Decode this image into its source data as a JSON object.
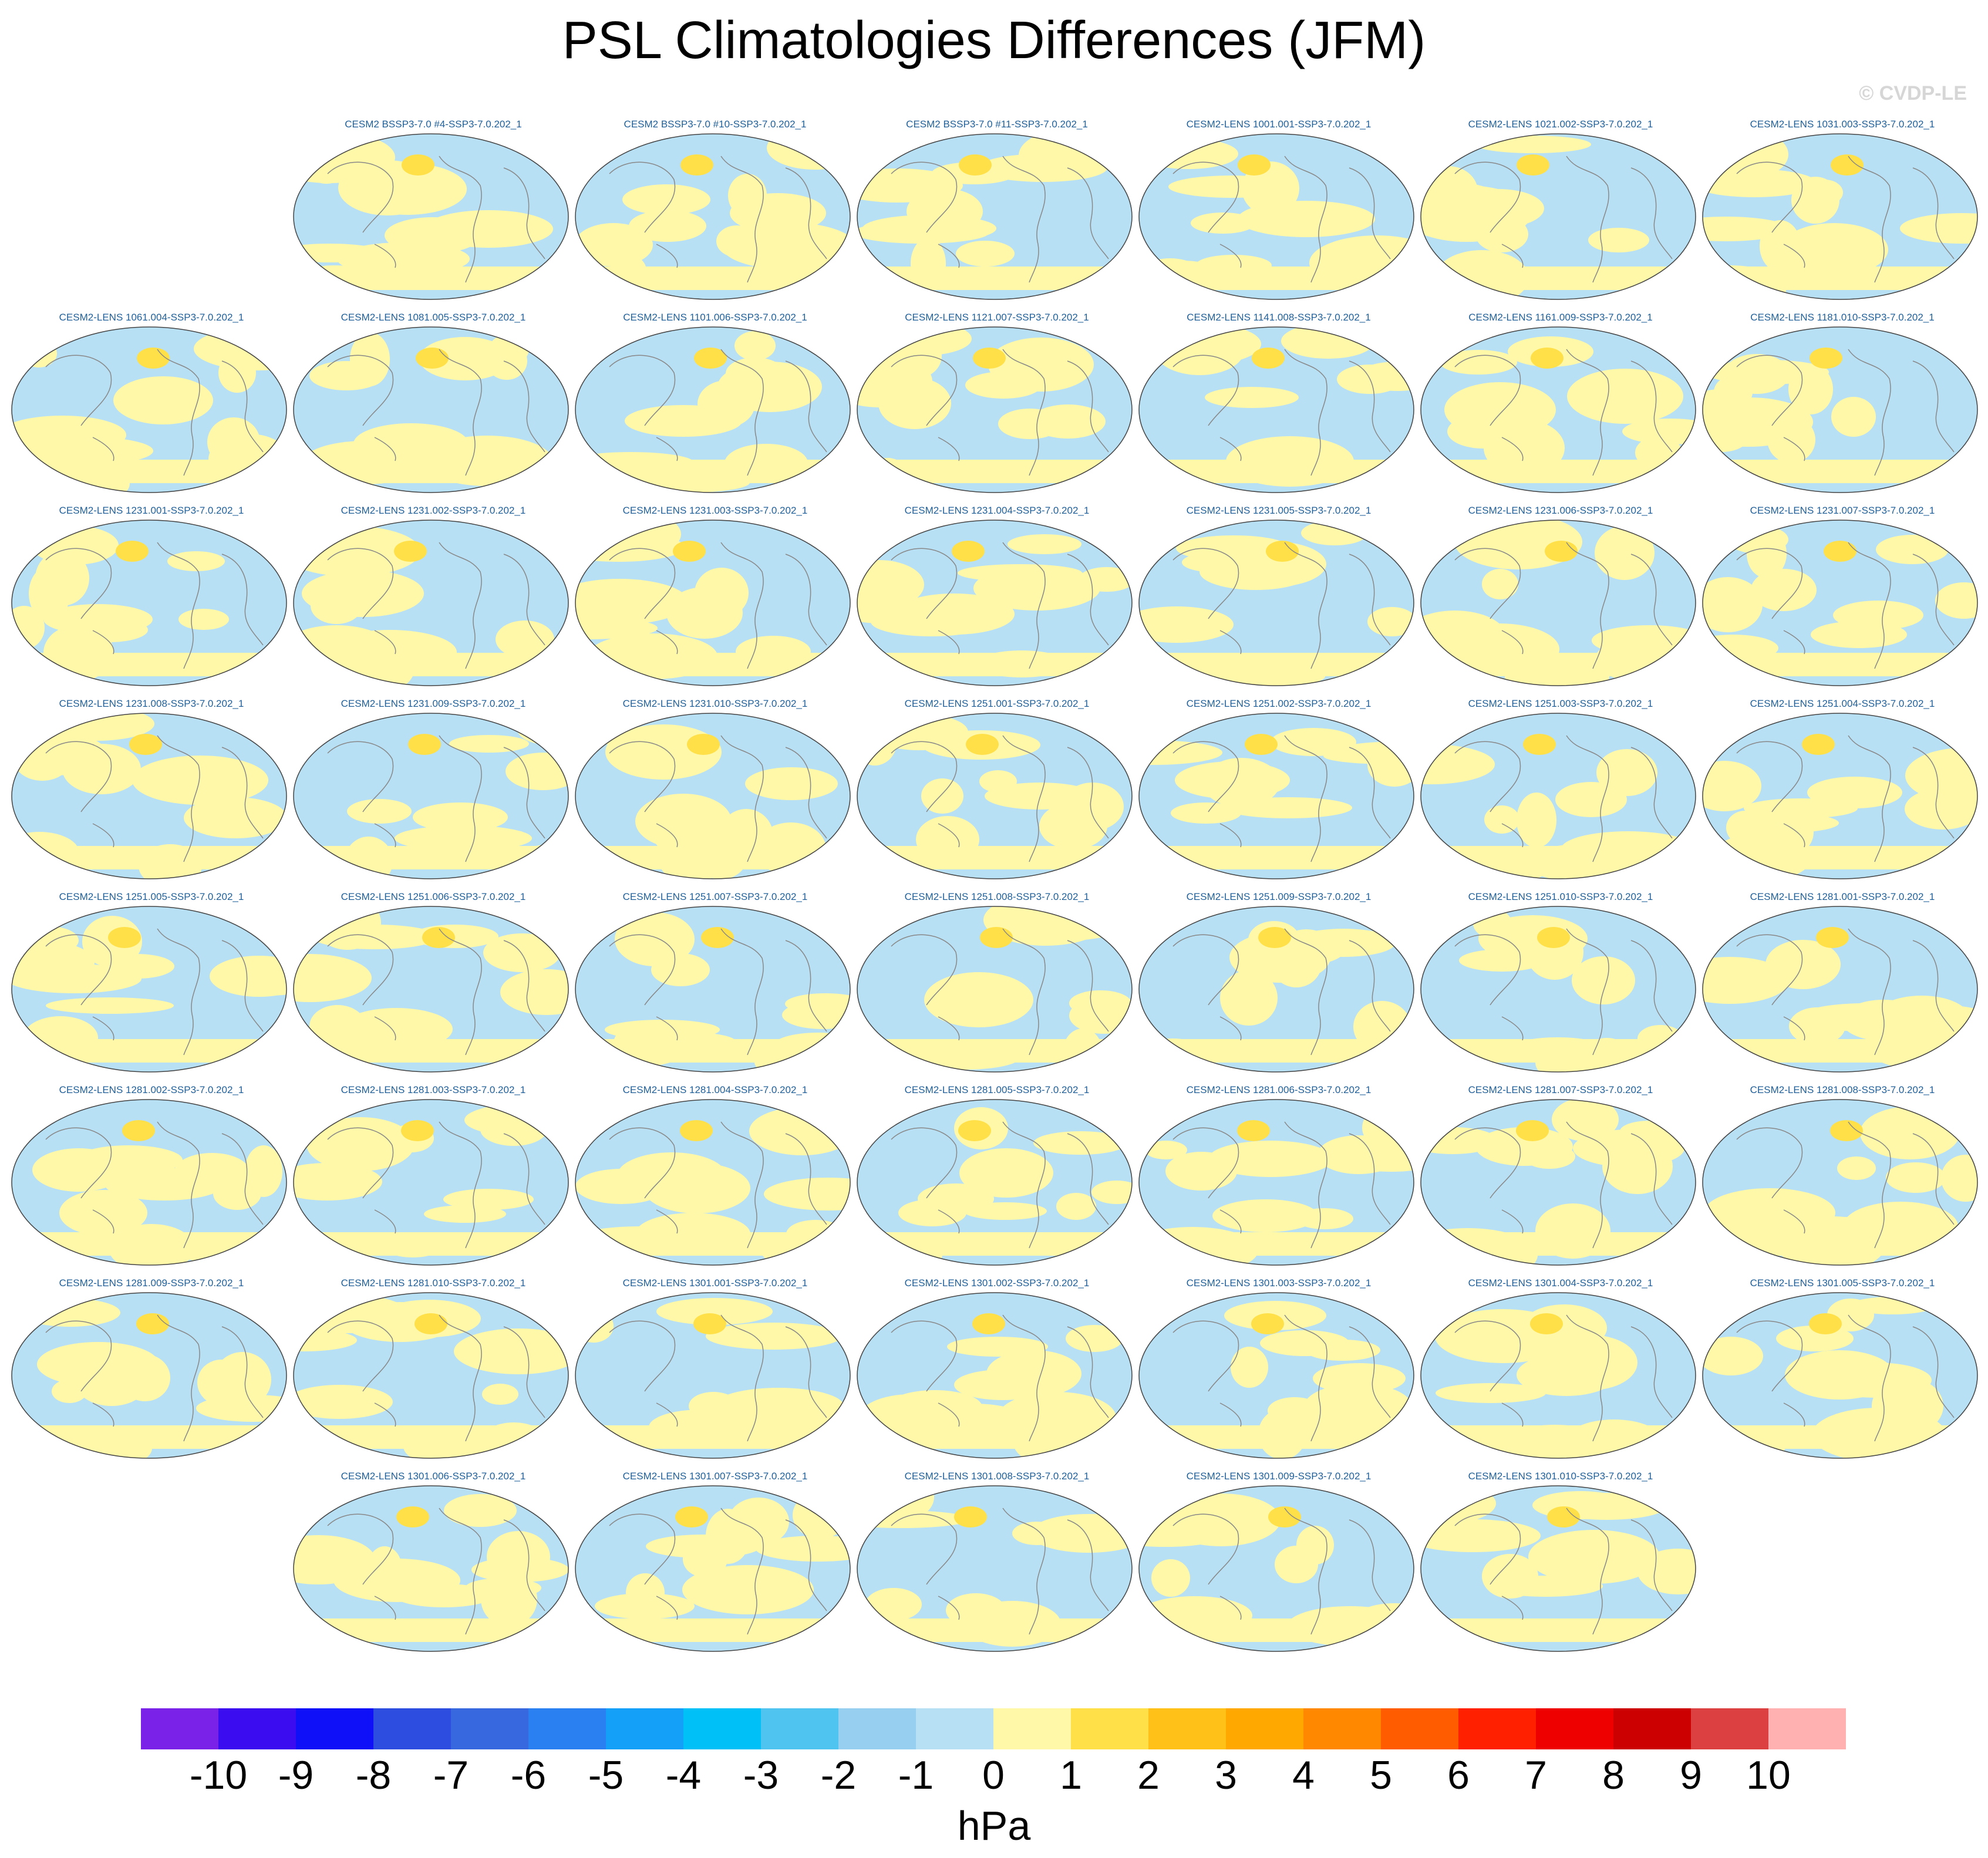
{
  "title": "PSL Climatologies Differences (JFM)",
  "watermark": "© CVDP-LE",
  "panels": [
    {
      "label": "CESM2 BSSP3-7.0 #4-SSP3-7.0.202_1"
    },
    {
      "label": "CESM2 BSSP3-7.0 #10-SSP3-7.0.202_1"
    },
    {
      "label": "CESM2 BSSP3-7.0 #11-SSP3-7.0.202_1"
    },
    {
      "label": "CESM2-LENS 1001.001-SSP3-7.0.202_1"
    },
    {
      "label": "CESM2-LENS 1021.002-SSP3-7.0.202_1"
    },
    {
      "label": "CESM2-LENS 1031.003-SSP3-7.0.202_1"
    },
    {
      "label": "CESM2-LENS 1061.004-SSP3-7.0.202_1"
    },
    {
      "label": "CESM2-LENS 1081.005-SSP3-7.0.202_1"
    },
    {
      "label": "CESM2-LENS 1101.006-SSP3-7.0.202_1"
    },
    {
      "label": "CESM2-LENS 1121.007-SSP3-7.0.202_1"
    },
    {
      "label": "CESM2-LENS 1141.008-SSP3-7.0.202_1"
    },
    {
      "label": "CESM2-LENS 1161.009-SSP3-7.0.202_1"
    },
    {
      "label": "CESM2-LENS 1181.010-SSP3-7.0.202_1"
    },
    {
      "label": "CESM2-LENS 1231.001-SSP3-7.0.202_1"
    },
    {
      "label": "CESM2-LENS 1231.002-SSP3-7.0.202_1"
    },
    {
      "label": "CESM2-LENS 1231.003-SSP3-7.0.202_1"
    },
    {
      "label": "CESM2-LENS 1231.004-SSP3-7.0.202_1"
    },
    {
      "label": "CESM2-LENS 1231.005-SSP3-7.0.202_1"
    },
    {
      "label": "CESM2-LENS 1231.006-SSP3-7.0.202_1"
    },
    {
      "label": "CESM2-LENS 1231.007-SSP3-7.0.202_1"
    },
    {
      "label": "CESM2-LENS 1231.008-SSP3-7.0.202_1"
    },
    {
      "label": "CESM2-LENS 1231.009-SSP3-7.0.202_1"
    },
    {
      "label": "CESM2-LENS 1231.010-SSP3-7.0.202_1"
    },
    {
      "label": "CESM2-LENS 1251.001-SSP3-7.0.202_1"
    },
    {
      "label": "CESM2-LENS 1251.002-SSP3-7.0.202_1"
    },
    {
      "label": "CESM2-LENS 1251.003-SSP3-7.0.202_1"
    },
    {
      "label": "CESM2-LENS 1251.004-SSP3-7.0.202_1"
    },
    {
      "label": "CESM2-LENS 1251.005-SSP3-7.0.202_1"
    },
    {
      "label": "CESM2-LENS 1251.006-SSP3-7.0.202_1"
    },
    {
      "label": "CESM2-LENS 1251.007-SSP3-7.0.202_1"
    },
    {
      "label": "CESM2-LENS 1251.008-SSP3-7.0.202_1"
    },
    {
      "label": "CESM2-LENS 1251.009-SSP3-7.0.202_1"
    },
    {
      "label": "CESM2-LENS 1251.010-SSP3-7.0.202_1"
    },
    {
      "label": "CESM2-LENS 1281.001-SSP3-7.0.202_1"
    },
    {
      "label": "CESM2-LENS 1281.002-SSP3-7.0.202_1"
    },
    {
      "label": "CESM2-LENS 1281.003-SSP3-7.0.202_1"
    },
    {
      "label": "CESM2-LENS 1281.004-SSP3-7.0.202_1"
    },
    {
      "label": "CESM2-LENS 1281.005-SSP3-7.0.202_1"
    },
    {
      "label": "CESM2-LENS 1281.006-SSP3-7.0.202_1"
    },
    {
      "label": "CESM2-LENS 1281.007-SSP3-7.0.202_1"
    },
    {
      "label": "CESM2-LENS 1281.008-SSP3-7.0.202_1"
    },
    {
      "label": "CESM2-LENS 1281.009-SSP3-7.0.202_1"
    },
    {
      "label": "CESM2-LENS 1281.010-SSP3-7.0.202_1"
    },
    {
      "label": "CESM2-LENS 1301.001-SSP3-7.0.202_1"
    },
    {
      "label": "CESM2-LENS 1301.002-SSP3-7.0.202_1"
    },
    {
      "label": "CESM2-LENS 1301.003-SSP3-7.0.202_1"
    },
    {
      "label": "CESM2-LENS 1301.004-SSP3-7.0.202_1"
    },
    {
      "label": "CESM2-LENS 1301.005-SSP3-7.0.202_1"
    },
    {
      "label": "CESM2-LENS 1301.006-SSP3-7.0.202_1"
    },
    {
      "label": "CESM2-LENS 1301.007-SSP3-7.0.202_1"
    },
    {
      "label": "CESM2-LENS 1301.008-SSP3-7.0.202_1"
    },
    {
      "label": "CESM2-LENS 1301.009-SSP3-7.0.202_1"
    },
    {
      "label": "CESM2-LENS 1301.010-SSP3-7.0.202_1"
    }
  ],
  "colorbar": {
    "unit": "hPa",
    "tick_labels": [
      "-10",
      "-9",
      "-8",
      "-7",
      "-6",
      "-5",
      "-4",
      "-3",
      "-2",
      "-1",
      "0",
      "1",
      "2",
      "3",
      "4",
      "5",
      "6",
      "7",
      "8",
      "9",
      "10"
    ],
    "colors": [
      "#7b22e8",
      "#3b0cf0",
      "#1010f8",
      "#2d4ce0",
      "#3868e0",
      "#2a80f0",
      "#14a0f8",
      "#00c0f8",
      "#50c4f0",
      "#96cff0",
      "#b8e0f4",
      "#fff8a8",
      "#ffe048",
      "#ffc018",
      "#ffa800",
      "#ff8800",
      "#ff5c00",
      "#ff2000",
      "#ee0000",
      "#cc0000",
      "#dd4040",
      "#ffb0b0"
    ]
  }
}
